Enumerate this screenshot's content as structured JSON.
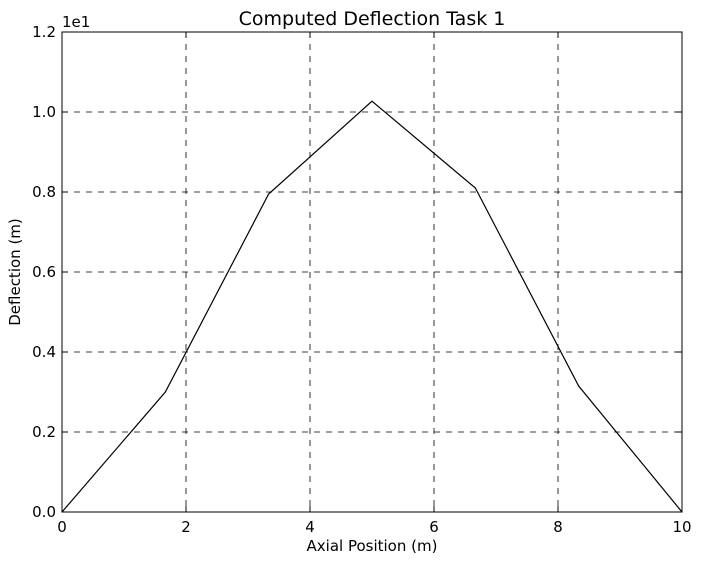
{
  "chart_data": {
    "type": "line",
    "title": "Computed Deflection Task 1",
    "xlabel": "Axial Position (m)",
    "ylabel": "Deflection (m)",
    "y_offset_label": "1e1",
    "xlim": [
      0,
      10
    ],
    "ylim": [
      0,
      1.2
    ],
    "x_ticks": [
      0,
      2,
      4,
      6,
      8,
      10
    ],
    "x_tick_labels": [
      "0",
      "2",
      "4",
      "6",
      "8",
      "10"
    ],
    "y_ticks": [
      0,
      0.2,
      0.4,
      0.6,
      0.8,
      1.0,
      1.2
    ],
    "y_tick_labels": [
      "0.0",
      "0.2",
      "0.4",
      "0.6",
      "0.8",
      "1.0",
      "1.2"
    ],
    "grid": true,
    "series": [
      {
        "x": [
          0,
          1.667,
          3.333,
          5.0,
          6.667,
          8.333,
          10
        ],
        "y": [
          0,
          0.3,
          0.795,
          1.027,
          0.81,
          0.315,
          0
        ],
        "color": "#000000"
      }
    ]
  }
}
